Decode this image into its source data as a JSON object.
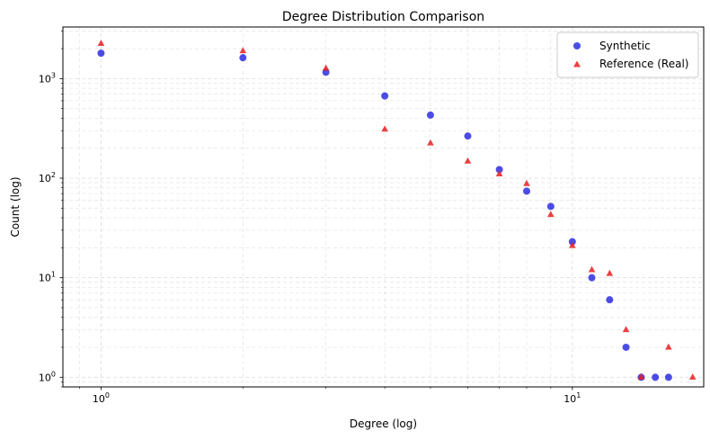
{
  "chart_data": {
    "type": "scatter",
    "title": "Degree Distribution Comparison",
    "xlabel": "Degree (log)",
    "ylabel": "Count (log)",
    "xscale": "log",
    "yscale": "log",
    "xlim": [
      0.83,
      19
    ],
    "ylim": [
      0.8,
      3300
    ],
    "x_ticks": [
      {
        "value": 1,
        "base": "10",
        "exp": "0"
      },
      {
        "value": 10,
        "base": "10",
        "exp": "1"
      }
    ],
    "y_ticks": [
      {
        "value": 1,
        "base": "10",
        "exp": "0"
      },
      {
        "value": 10,
        "base": "10",
        "exp": "1"
      },
      {
        "value": 100,
        "base": "10",
        "exp": "2"
      },
      {
        "value": 1000,
        "base": "10",
        "exp": "3"
      }
    ],
    "grid": true,
    "legend_position": "top-right",
    "series": [
      {
        "name": "Synthetic",
        "marker": "circle",
        "color": "#1f1fe0",
        "points": [
          [
            1,
            1800
          ],
          [
            2,
            1620
          ],
          [
            3,
            1160
          ],
          [
            4,
            670
          ],
          [
            5,
            430
          ],
          [
            6,
            265
          ],
          [
            7,
            122
          ],
          [
            8,
            74
          ],
          [
            9,
            52
          ],
          [
            10,
            23
          ],
          [
            11,
            10
          ],
          [
            12,
            6
          ],
          [
            13,
            2
          ],
          [
            14,
            1
          ],
          [
            15,
            1
          ],
          [
            16,
            1
          ]
        ]
      },
      {
        "name": "Reference (Real)",
        "marker": "triangle",
        "color": "#e81e1e",
        "points": [
          [
            1,
            2250
          ],
          [
            2,
            1900
          ],
          [
            3,
            1270
          ],
          [
            4,
            310
          ],
          [
            5,
            225
          ],
          [
            6,
            148
          ],
          [
            7,
            110
          ],
          [
            8,
            88
          ],
          [
            9,
            43
          ],
          [
            10,
            21
          ],
          [
            11,
            12
          ],
          [
            12,
            11
          ],
          [
            13,
            3
          ],
          [
            14,
            1
          ],
          [
            16,
            2
          ],
          [
            18,
            1
          ]
        ]
      }
    ]
  }
}
